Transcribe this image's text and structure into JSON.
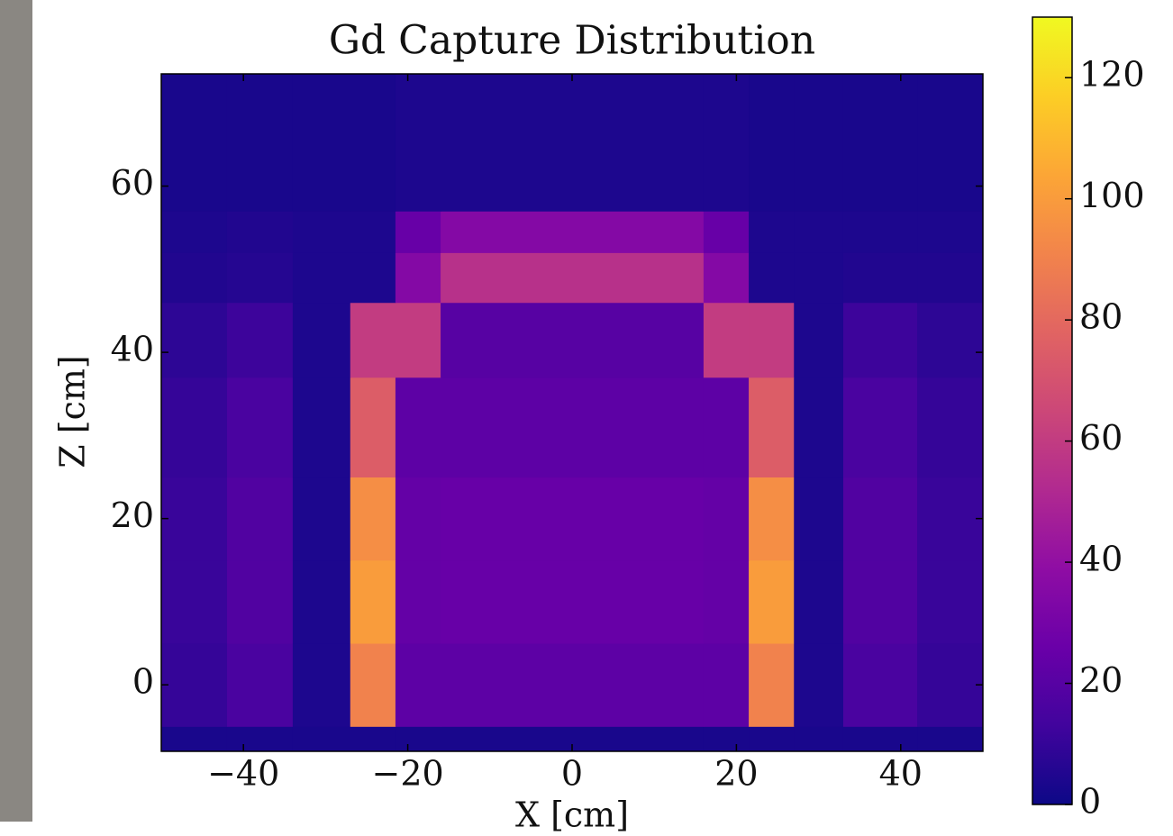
{
  "chart_data": {
    "type": "heatmap",
    "title": "Gd Capture Distribution",
    "xlabel": "X [cm]",
    "ylabel": "Z [cm]",
    "cmap": "plasma",
    "x_edges": [
      -50,
      -42,
      -34,
      -27,
      -21.5,
      -16,
      16,
      21.5,
      27,
      33,
      42,
      50
    ],
    "y_edges": [
      -8,
      -5,
      5,
      15,
      25,
      37,
      46,
      52,
      57,
      73.5
    ],
    "values": [
      [
        3,
        3,
        3,
        3,
        3,
        3,
        3,
        3,
        3,
        3,
        3
      ],
      [
        10,
        16,
        4,
        90,
        22,
        22,
        22,
        90,
        4,
        16,
        10
      ],
      [
        11,
        18,
        4,
        100,
        24,
        25,
        24,
        100,
        4,
        18,
        11
      ],
      [
        11,
        18,
        4,
        95,
        24,
        25,
        24,
        95,
        4,
        18,
        11
      ],
      [
        10,
        16,
        4,
        75,
        22,
        22,
        22,
        75,
        4,
        16,
        10
      ],
      [
        8,
        12,
        4,
        60,
        60,
        20,
        60,
        60,
        4,
        12,
        8
      ],
      [
        5,
        6,
        4,
        4,
        35,
        55,
        35,
        4,
        4,
        5,
        5
      ],
      [
        4,
        5,
        4,
        4,
        25,
        35,
        25,
        4,
        4,
        4,
        4
      ],
      [
        3,
        3,
        3,
        3,
        4,
        4,
        4,
        3,
        3,
        3,
        3
      ]
    ],
    "xlim": [
      -50,
      50
    ],
    "ylim": [
      -8,
      73.5
    ],
    "xticks": [
      {
        "value": -40,
        "label": "−40"
      },
      {
        "value": -20,
        "label": "−20"
      },
      0,
      20,
      40
    ],
    "yticks": [
      0,
      20,
      40,
      60
    ],
    "clim": [
      0,
      130
    ],
    "cticks": [
      0,
      20,
      40,
      60,
      80,
      100,
      120
    ]
  }
}
